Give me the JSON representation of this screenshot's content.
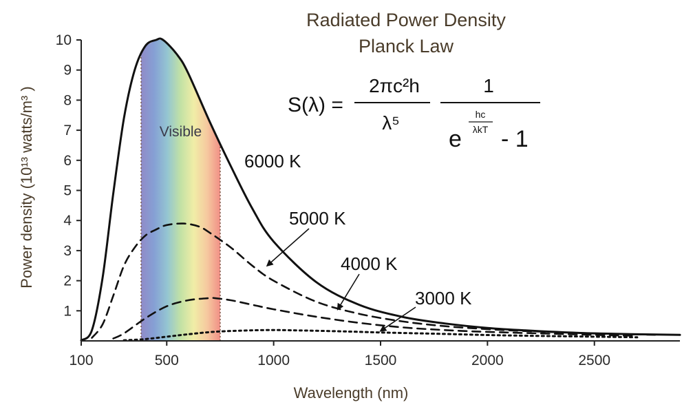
{
  "chart_data": {
    "type": "line",
    "title": "Radiated Power Density",
    "subtitle": "Planck Law",
    "xlabel": "Wavelength (nm)",
    "ylabel": "Power density (10¹³ watts/m³ )",
    "xlim": [
      100,
      2900
    ],
    "ylim": [
      0,
      10
    ],
    "x_ticks": [
      100,
      500,
      1000,
      1500,
      2000,
      2500
    ],
    "y_ticks": [
      1,
      2,
      3,
      4,
      5,
      6,
      7,
      8,
      9,
      10
    ],
    "grid": false,
    "legend": "none",
    "formula": {
      "lhs": "S(λ) =",
      "frac1_num": "2πc²h",
      "frac1_den": "λ⁵",
      "frac2_num": "1",
      "frac2_den_base": "e",
      "frac2_exp_num": "hc",
      "frac2_exp_den": "λkT",
      "frac2_den_tail": "- 1"
    },
    "visible_band": {
      "label": "Visible",
      "range": [
        380,
        750
      ],
      "colors": [
        "#8a85c5",
        "#7f9bd2",
        "#8fc3cf",
        "#bfe0a0",
        "#f0eca2",
        "#f5c69a",
        "#f08a80"
      ]
    },
    "series": [
      {
        "name": "6000 K",
        "style": "solid",
        "x": [
          100,
          150,
          200,
          250,
          300,
          350,
          400,
          450,
          483,
          550,
          600,
          700,
          800,
          900,
          1000,
          1200,
          1400,
          1600,
          1800,
          2000,
          2200,
          2500,
          2900
        ],
        "values": [
          0.02,
          0.35,
          2.1,
          4.9,
          7.4,
          9.0,
          9.8,
          10.0,
          10.0,
          9.5,
          8.9,
          7.3,
          5.8,
          4.4,
          3.3,
          1.95,
          1.2,
          0.8,
          0.58,
          0.43,
          0.34,
          0.25,
          0.2
        ]
      },
      {
        "name": "5000 K",
        "style": "dashed",
        "x": [
          150,
          200,
          250,
          300,
          350,
          400,
          450,
          500,
          580,
          650,
          700,
          800,
          900,
          1000,
          1200,
          1400,
          1600,
          1800,
          2000,
          2200,
          2500,
          2800
        ],
        "values": [
          0.1,
          0.55,
          1.5,
          2.5,
          3.1,
          3.5,
          3.7,
          3.85,
          3.9,
          3.8,
          3.6,
          3.1,
          2.5,
          2.0,
          1.3,
          0.9,
          0.65,
          0.49,
          0.39,
          0.32,
          0.25,
          0.2
        ]
      },
      {
        "name": "4000 K",
        "style": "dashed",
        "x": [
          250,
          300,
          400,
          500,
          600,
          700,
          725,
          800,
          900,
          1000,
          1200,
          1400,
          1600,
          1800,
          2000,
          2500,
          2700
        ],
        "values": [
          0.08,
          0.25,
          0.75,
          1.15,
          1.35,
          1.42,
          1.42,
          1.35,
          1.2,
          1.05,
          0.8,
          0.6,
          0.45,
          0.36,
          0.3,
          0.2,
          0.17
        ]
      },
      {
        "name": "3000 K",
        "style": "dotted",
        "x": [
          300,
          400,
          500,
          600,
          700,
          800,
          966,
          1100,
          1300,
          1500,
          1800,
          2100,
          2500,
          2700
        ],
        "values": [
          0.02,
          0.06,
          0.14,
          0.22,
          0.29,
          0.33,
          0.36,
          0.35,
          0.32,
          0.28,
          0.23,
          0.18,
          0.14,
          0.12
        ]
      }
    ],
    "annotations": [
      {
        "text": "Visible",
        "target": "visible-band"
      },
      {
        "text": "6000 K",
        "target": "6000 K"
      },
      {
        "text": "5000 K",
        "target": "5000 K",
        "arrow_to": [
          970,
          2.5
        ]
      },
      {
        "text": "4000 K",
        "target": "4000 K",
        "arrow_to": [
          1300,
          1.05
        ]
      },
      {
        "text": "3000 K",
        "target": "3000 K",
        "arrow_to": [
          1500,
          0.33
        ]
      }
    ],
    "colors": {
      "title": "#4a3c2a",
      "axis": "#222222",
      "curves": "#111111",
      "visible_border": "#7a5a4a"
    }
  }
}
